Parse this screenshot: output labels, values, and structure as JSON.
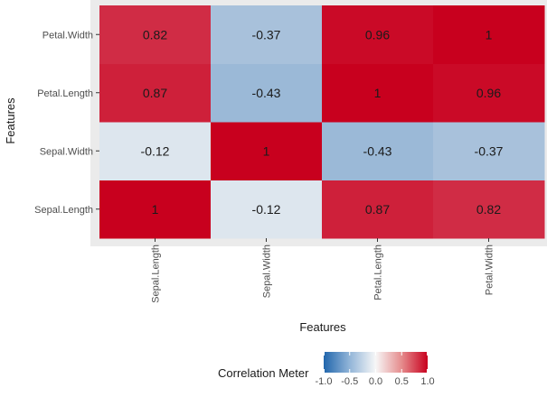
{
  "chart_data": {
    "type": "heatmap",
    "x_categories": [
      "Sepal.Length",
      "Sepal.Width",
      "Petal.Length",
      "Petal.Width"
    ],
    "y_categories": [
      "Sepal.Length",
      "Sepal.Width",
      "Petal.Length",
      "Petal.Width"
    ],
    "matrix": [
      [
        1,
        -0.12,
        0.87,
        0.82
      ],
      [
        -0.12,
        1,
        -0.43,
        -0.37
      ],
      [
        0.87,
        -0.43,
        1,
        0.96
      ],
      [
        0.82,
        -0.37,
        0.96,
        1
      ]
    ],
    "labels": [
      [
        "1",
        "-0.12",
        "0.87",
        "0.82"
      ],
      [
        "-0.12",
        "1",
        "-0.43",
        "-0.37"
      ],
      [
        "0.87",
        "-0.43",
        "1",
        "0.96"
      ],
      [
        "0.82",
        "-0.37",
        "0.96",
        "1"
      ]
    ],
    "xlabel": "Features",
    "ylabel": "Features",
    "colorscale": {
      "low": "#2166ac",
      "mid": "#f7f7f7",
      "high": "#c8001e",
      "range": [
        -1,
        1
      ]
    },
    "legend": {
      "title": "Correlation Meter",
      "ticks": [
        -1,
        -0.5,
        0,
        0.5,
        1
      ],
      "tick_labels": [
        "-1.0",
        "-0.5",
        "0.0",
        "0.5",
        "1.0"
      ],
      "placement": "bottom"
    },
    "panel_background": "#ebebeb"
  }
}
